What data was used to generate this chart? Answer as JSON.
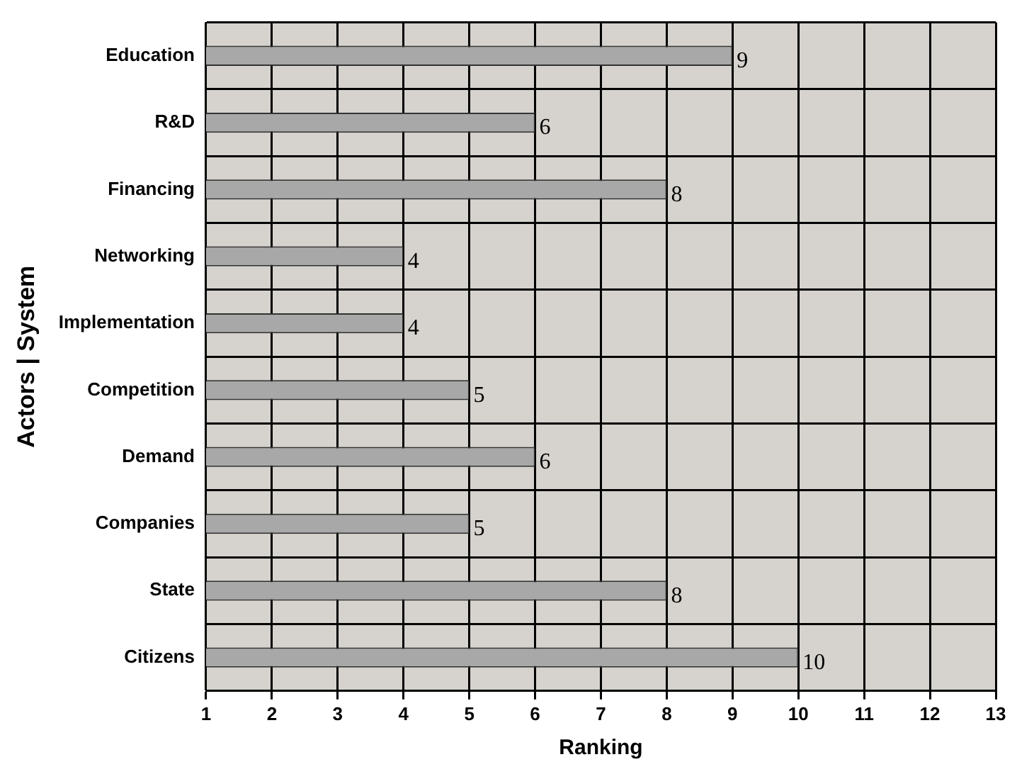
{
  "chart_data": {
    "type": "bar",
    "orientation": "horizontal",
    "ylabel": "Actors | System",
    "xlabel": "Ranking",
    "categories": [
      "Education",
      "R&D",
      "Financing",
      "Networking",
      "Implementation",
      "Competition",
      "Demand",
      "Companies",
      "State",
      "Citizens"
    ],
    "values": [
      9,
      6,
      8,
      4,
      4,
      5,
      6,
      5,
      8,
      10
    ],
    "color": "#a8a8a8",
    "xlim": [
      1,
      13
    ],
    "xticks": [
      1,
      2,
      3,
      4,
      5,
      6,
      7,
      8,
      9,
      10,
      11,
      12,
      13
    ],
    "grid": true,
    "data_labels": true,
    "legend": false
  }
}
